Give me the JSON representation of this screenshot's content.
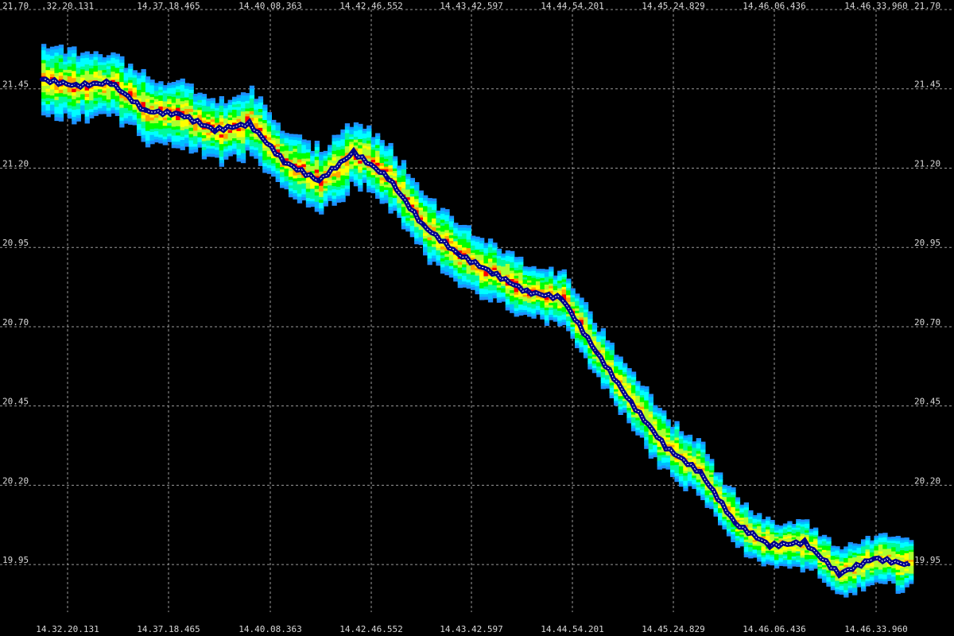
{
  "chart_data": {
    "type": "heatmap",
    "title": "",
    "xlabel": "",
    "ylabel": "",
    "grid": true,
    "legend": "none",
    "ylim": [
      19.8,
      21.7
    ],
    "y_ticks": [
      {
        "value": 21.7,
        "label": "21.70"
      },
      {
        "value": 21.45,
        "label": "21.45"
      },
      {
        "value": 21.2,
        "label": "21.20"
      },
      {
        "value": 20.95,
        "label": "20.95"
      },
      {
        "value": 20.7,
        "label": "20.70"
      },
      {
        "value": 20.45,
        "label": "20.45"
      },
      {
        "value": 20.2,
        "label": "20.20"
      },
      {
        "value": 19.95,
        "label": "19.95"
      }
    ],
    "x_ticks_top": [
      ".32.20.131",
      "14.37.18.465",
      "14.40.08.363",
      "14.42.46.552",
      "14.43.42.597",
      "14.44.54.201",
      "14.45.24.829",
      "14.46.06.436",
      "14.46.33.960"
    ],
    "x_ticks_bottom": [
      "14.32.20.131",
      "14.37.18.465",
      "14.40.08.363",
      "14.42.46.552",
      "14.43.42.597",
      "14.44.54.201",
      "14.45.24.829",
      "14.46.06.436",
      "14.46.33.960"
    ],
    "midline": {
      "name": "",
      "x_index": [
        0,
        4,
        8,
        12,
        16,
        20,
        24,
        28,
        32,
        36,
        40,
        44,
        48,
        52,
        56,
        60,
        64,
        68,
        72,
        76,
        80,
        84,
        88,
        92,
        96,
        100
      ],
      "y": [
        21.48,
        21.46,
        21.47,
        21.38,
        21.37,
        21.32,
        21.34,
        21.22,
        21.16,
        21.25,
        21.17,
        21.02,
        20.93,
        20.87,
        20.81,
        20.79,
        20.62,
        20.46,
        20.32,
        20.24,
        20.08,
        20.01,
        20.02,
        19.92,
        19.97,
        19.95
      ]
    },
    "band_spread": {
      "x_index": [
        0,
        12,
        24,
        36,
        48,
        60,
        72,
        84,
        100
      ],
      "half_width": [
        0.11,
        0.1,
        0.1,
        0.1,
        0.09,
        0.08,
        0.09,
        0.07,
        0.08
      ]
    },
    "colors": {
      "background": "#000000",
      "grid": "#9a9a9a",
      "midline": "#00008b",
      "midline_highlight": "#ffffff",
      "palette": [
        "#1e90ff",
        "#00bfff",
        "#00ffff",
        "#00fa9a",
        "#00ff00",
        "#adff2f",
        "#ffff00",
        "#ffa500",
        "#ff0000"
      ]
    }
  }
}
